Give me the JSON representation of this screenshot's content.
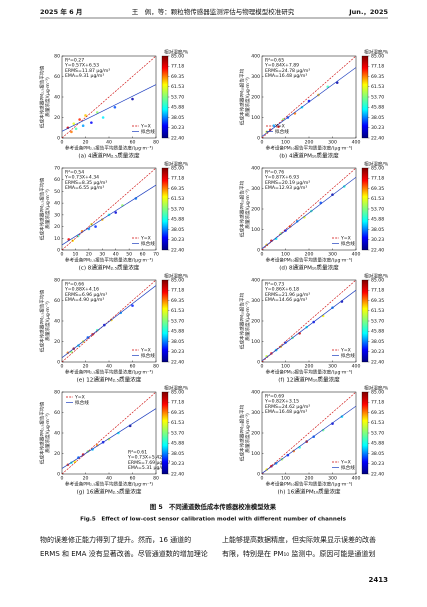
{
  "header": {
    "left": "2025 年 6 月",
    "center": "王　佩，等：颗粒物传感器监测评估与物理模型校准研究",
    "right": "Jun.，2025"
  },
  "figure": {
    "caption_cn": "图 5　不同通道数低成本传感器校准模型效果",
    "caption_en": "Fig.5　Effect of low-cost sensor calibration model with different number of channels",
    "legend": [
      "Y=X",
      "拟合线"
    ],
    "colorbar": {
      "label": "相对湿度/%",
      "lim": [
        22.4,
        85
      ],
      "ticks": [
        {
          "value": 85,
          "label": "85.00"
        },
        77.18,
        69.35,
        61.53,
        {
          "value": 53.7,
          "label": "53.70"
        },
        45.88,
        38.05,
        30.23,
        {
          "value": 22.4,
          "label": "22.40"
        }
      ]
    }
  },
  "chart_data": [
    {
      "type": "scatter",
      "caption": "(a) 4通道PM₂.₅质量浓度",
      "x_label": "参考设备PM₂.₅报告平均质量浓度/(μg·m⁻³)",
      "y_label": [
        "低成本传感器PM₂.₅报告平均值",
        "质量浓度/(μg·m⁻³)"
      ],
      "stats": [
        "R²=0.27",
        "Y=0.57X+6.53",
        "ERMS=11.87 μg/m³",
        "EMA=9.31 μg/m³"
      ],
      "fit": {
        "slope": 0.57,
        "intercept": 6.53
      },
      "xlim": [
        0,
        80
      ],
      "ylim": [
        0,
        80
      ],
      "xticks": [
        0,
        20,
        40,
        60,
        80
      ],
      "yticks": [
        0,
        20,
        40,
        60,
        80
      ],
      "legend_loc": "lower right",
      "stats_loc": "upper left",
      "x": [
        5,
        8,
        10,
        12,
        15,
        18,
        20,
        25,
        30,
        35,
        45,
        60
      ],
      "y": [
        10,
        6,
        14,
        9,
        18,
        12,
        22,
        15,
        25,
        20,
        30,
        38
      ],
      "rh": [
        80,
        70,
        60,
        50,
        75,
        40,
        65,
        30,
        55,
        45,
        35,
        25
      ]
    },
    {
      "type": "scatter",
      "caption": "(b) 4通道PM₁₀质量浓度",
      "x_label": "参考设备PM₁₀报告平均质量浓度/(μg·m⁻³)",
      "y_label": [
        "低成本传感器PM₁₀报告平均",
        "质量浓度/(μg·m⁻³)"
      ],
      "stats": [
        "R²=0.65",
        "Y=0.84X+7.89",
        "ERMS=24.78 μg/m³",
        "EMA=16.48 μg/m³"
      ],
      "fit": {
        "slope": 0.84,
        "intercept": 7.89
      },
      "xlim": [
        0,
        400
      ],
      "ylim": [
        0,
        400
      ],
      "xticks": [
        0,
        100,
        200,
        300,
        400
      ],
      "yticks": [
        0,
        100,
        200,
        300,
        400
      ],
      "legend_loc": "lower left",
      "stats_loc": "upper left",
      "x": [
        20,
        35,
        50,
        70,
        90,
        110,
        140,
        170,
        200,
        240,
        280,
        320
      ],
      "y": [
        30,
        40,
        60,
        55,
        90,
        100,
        120,
        150,
        180,
        210,
        250,
        270
      ],
      "rh": [
        60,
        75,
        40,
        80,
        55,
        35,
        70,
        45,
        30,
        65,
        50,
        25
      ]
    },
    {
      "type": "scatter",
      "caption": "(c) 8通道PM₂.₅质量浓度",
      "x_label": "参考设备PM₂.₅报告平均质量浓度/(μg·m⁻³)",
      "y_label": [
        "低成本传感器PM₂.₅报告平均值",
        "质量浓度/(μg·m⁻³)"
      ],
      "stats": [
        "R²=0.54",
        "Y=0.73X+4.34",
        "ERMS=8.35 μg/m³",
        "EMA=6.55 μg/m³"
      ],
      "fit": {
        "slope": 0.73,
        "intercept": 4.34
      },
      "xlim": [
        0,
        70
      ],
      "ylim": [
        0,
        70
      ],
      "xticks": [
        0,
        10,
        20,
        30,
        40,
        50,
        60,
        70
      ],
      "yticks": [
        0,
        10,
        20,
        30,
        40,
        50,
        60,
        70
      ],
      "legend_loc": "lower right",
      "stats_loc": "upper left",
      "x": [
        5,
        8,
        12,
        15,
        20,
        22,
        25,
        30,
        35,
        40,
        45,
        55
      ],
      "y": [
        9,
        8,
        12,
        16,
        18,
        22,
        20,
        26,
        30,
        32,
        38,
        44
      ],
      "rh": [
        78,
        62,
        50,
        70,
        40,
        58,
        33,
        66,
        47,
        28,
        55,
        38
      ]
    },
    {
      "type": "scatter",
      "caption": "(d) 8通道PM₁₀质量浓度",
      "x_label": "参考设备PM₁₀报告平均质量浓度/(μg·m⁻³)",
      "y_label": [
        "低成本传感器PM₁₀报告平均",
        "质量浓度/(μg·m⁻³)"
      ],
      "stats": [
        "R²=0.76",
        "Y=0.87X+6.93",
        "ERMS=20.19 μg/m³",
        "EMA=12.93 μg/m³"
      ],
      "fit": {
        "slope": 0.87,
        "intercept": 6.93
      },
      "xlim": [
        0,
        400
      ],
      "ylim": [
        0,
        400
      ],
      "xticks": [
        0,
        100,
        200,
        300,
        400
      ],
      "yticks": [
        0,
        100,
        200,
        300,
        400
      ],
      "legend_loc": "lower right",
      "stats_loc": "upper left",
      "x": [
        20,
        40,
        60,
        80,
        100,
        120,
        150,
        180,
        210,
        250,
        300,
        350
      ],
      "y": [
        25,
        45,
        55,
        80,
        95,
        115,
        140,
        160,
        190,
        230,
        270,
        310
      ],
      "rh": [
        65,
        80,
        45,
        55,
        30,
        72,
        40,
        60,
        50,
        35,
        25,
        48
      ]
    },
    {
      "type": "scatter",
      "caption": "(e) 12通道PM₂.₅质量浓度",
      "x_label": "参考设备PM₂.₅报告平均质量浓度/(μg·m⁻³)",
      "y_label": [
        "低成本传感器PM₂.₅报告平均值",
        "质量浓度/(μg·m⁻³)"
      ],
      "stats": [
        "R²=0.66",
        "Y=0.88X+4.16",
        "ERMS=6.96 μg/m³",
        "EMA=4.90 μg/m³"
      ],
      "fit": {
        "slope": 0.88,
        "intercept": 4.16
      },
      "xlim": [
        0,
        80
      ],
      "ylim": [
        0,
        80
      ],
      "xticks": [
        0,
        20,
        40,
        60,
        80
      ],
      "yticks": [
        0,
        20,
        40,
        60,
        80
      ],
      "legend_loc": "lower right",
      "stats_loc": "upper left",
      "x": [
        5,
        8,
        10,
        14,
        18,
        22,
        26,
        30,
        36,
        42,
        50,
        60
      ],
      "y": [
        9,
        10,
        13,
        16,
        20,
        24,
        27,
        31,
        36,
        41,
        48,
        55
      ],
      "rh": [
        70,
        55,
        82,
        44,
        60,
        36,
        75,
        50,
        28,
        64,
        40,
        32
      ]
    },
    {
      "type": "scatter",
      "caption": "(f) 12通道PM₁₀质量浓度",
      "x_label": "参考设备PM₁₀报告平均质量浓度/(μg·m⁻³)",
      "y_label": [
        "低成本传感器PM₁₀报告平均",
        "质量浓度/(μg·m⁻³)"
      ],
      "stats": [
        "R²=0.73",
        "Y=0.86X+6.18",
        "ERMS=21.96 μg/m³",
        "EMA=14.66 μg/m³"
      ],
      "fit": {
        "slope": 0.86,
        "intercept": 6.18
      },
      "xlim": [
        0,
        400
      ],
      "ylim": [
        0,
        400
      ],
      "xticks": [
        0,
        100,
        200,
        300,
        400
      ],
      "yticks": [
        0,
        100,
        200,
        300,
        400
      ],
      "legend_loc": "lower right",
      "stats_loc": "upper left",
      "x": [
        20,
        40,
        60,
        80,
        100,
        130,
        160,
        190,
        220,
        260,
        300,
        340
      ],
      "y": [
        28,
        42,
        58,
        75,
        95,
        118,
        140,
        170,
        195,
        225,
        265,
        295
      ],
      "rh": [
        58,
        76,
        42,
        66,
        34,
        52,
        80,
        46,
        30,
        62,
        38,
        26
      ]
    },
    {
      "type": "scatter",
      "caption": "(g) 16通道PM₂.₅质量浓度",
      "x_label": "参考设备PM₂.₅报告平均质量浓度/(μg·m⁻³)",
      "y_label": [
        "低成本传感器PM₂.₅报告平均值",
        "质量浓度/(μg·m⁻³)"
      ],
      "stats": [
        "R²=0.61",
        "Y=0.73X+5.42",
        "ERMS=7.69 μg/m³",
        "EMA=5.31 μg/m³"
      ],
      "fit": {
        "slope": 0.73,
        "intercept": 5.42
      },
      "xlim": [
        0,
        80
      ],
      "ylim": [
        0,
        80
      ],
      "xticks": [
        0,
        20,
        40,
        60,
        80
      ],
      "yticks": [
        0,
        20,
        40,
        60,
        80
      ],
      "legend_loc": "upper left",
      "stats_loc": "lower right",
      "x": [
        5,
        8,
        11,
        14,
        18,
        22,
        26,
        30,
        35,
        40,
        48,
        58
      ],
      "y": [
        9,
        11,
        12,
        16,
        19,
        22,
        24,
        28,
        31,
        34,
        40,
        47
      ],
      "rh": [
        74,
        48,
        62,
        36,
        80,
        54,
        42,
        68,
        30,
        58,
        46,
        24
      ]
    },
    {
      "type": "scatter",
      "caption": "(h) 16通道PM₁₀质量浓度",
      "x_label": "参考设备PM₁₀报告平均质量浓度/(μg·m⁻³)",
      "y_label": [
        "低成本传感器PM₁₀报告平均",
        "质量浓度/(μg·m⁻³)"
      ],
      "stats": [
        "R²=0.69",
        "Y=0.82X+3.15",
        "ERMS=24.62 μg/m³",
        "EMA=16.48 μg/m³"
      ],
      "fit": {
        "slope": 0.82,
        "intercept": 3.15
      },
      "xlim": [
        0,
        400
      ],
      "ylim": [
        0,
        400
      ],
      "xticks": [
        0,
        100,
        200,
        300,
        400
      ],
      "yticks": [
        0,
        100,
        200,
        300,
        400
      ],
      "legend_loc": "lower right",
      "stats_loc": "upper left",
      "x": [
        20,
        40,
        60,
        85,
        110,
        135,
        160,
        190,
        220,
        260,
        300,
        340
      ],
      "y": [
        22,
        38,
        52,
        72,
        92,
        112,
        130,
        158,
        182,
        214,
        246,
        280
      ],
      "rh": [
        62,
        78,
        40,
        56,
        32,
        70,
        48,
        82,
        36,
        52,
        28,
        44
      ]
    }
  ],
  "body": {
    "left": [
      "物的误差修正能力得到了提升。然而，16 通道的",
      "ERMS 和 EMA 没有显著改善。尽管通道数的增加理论"
    ],
    "right": [
      "上能够提高数据精度，但实际效果显示误差的改善",
      "有限，特别是在 PM₁₀ 监测中。原因可能是通道划"
    ]
  },
  "page_number": "2413"
}
